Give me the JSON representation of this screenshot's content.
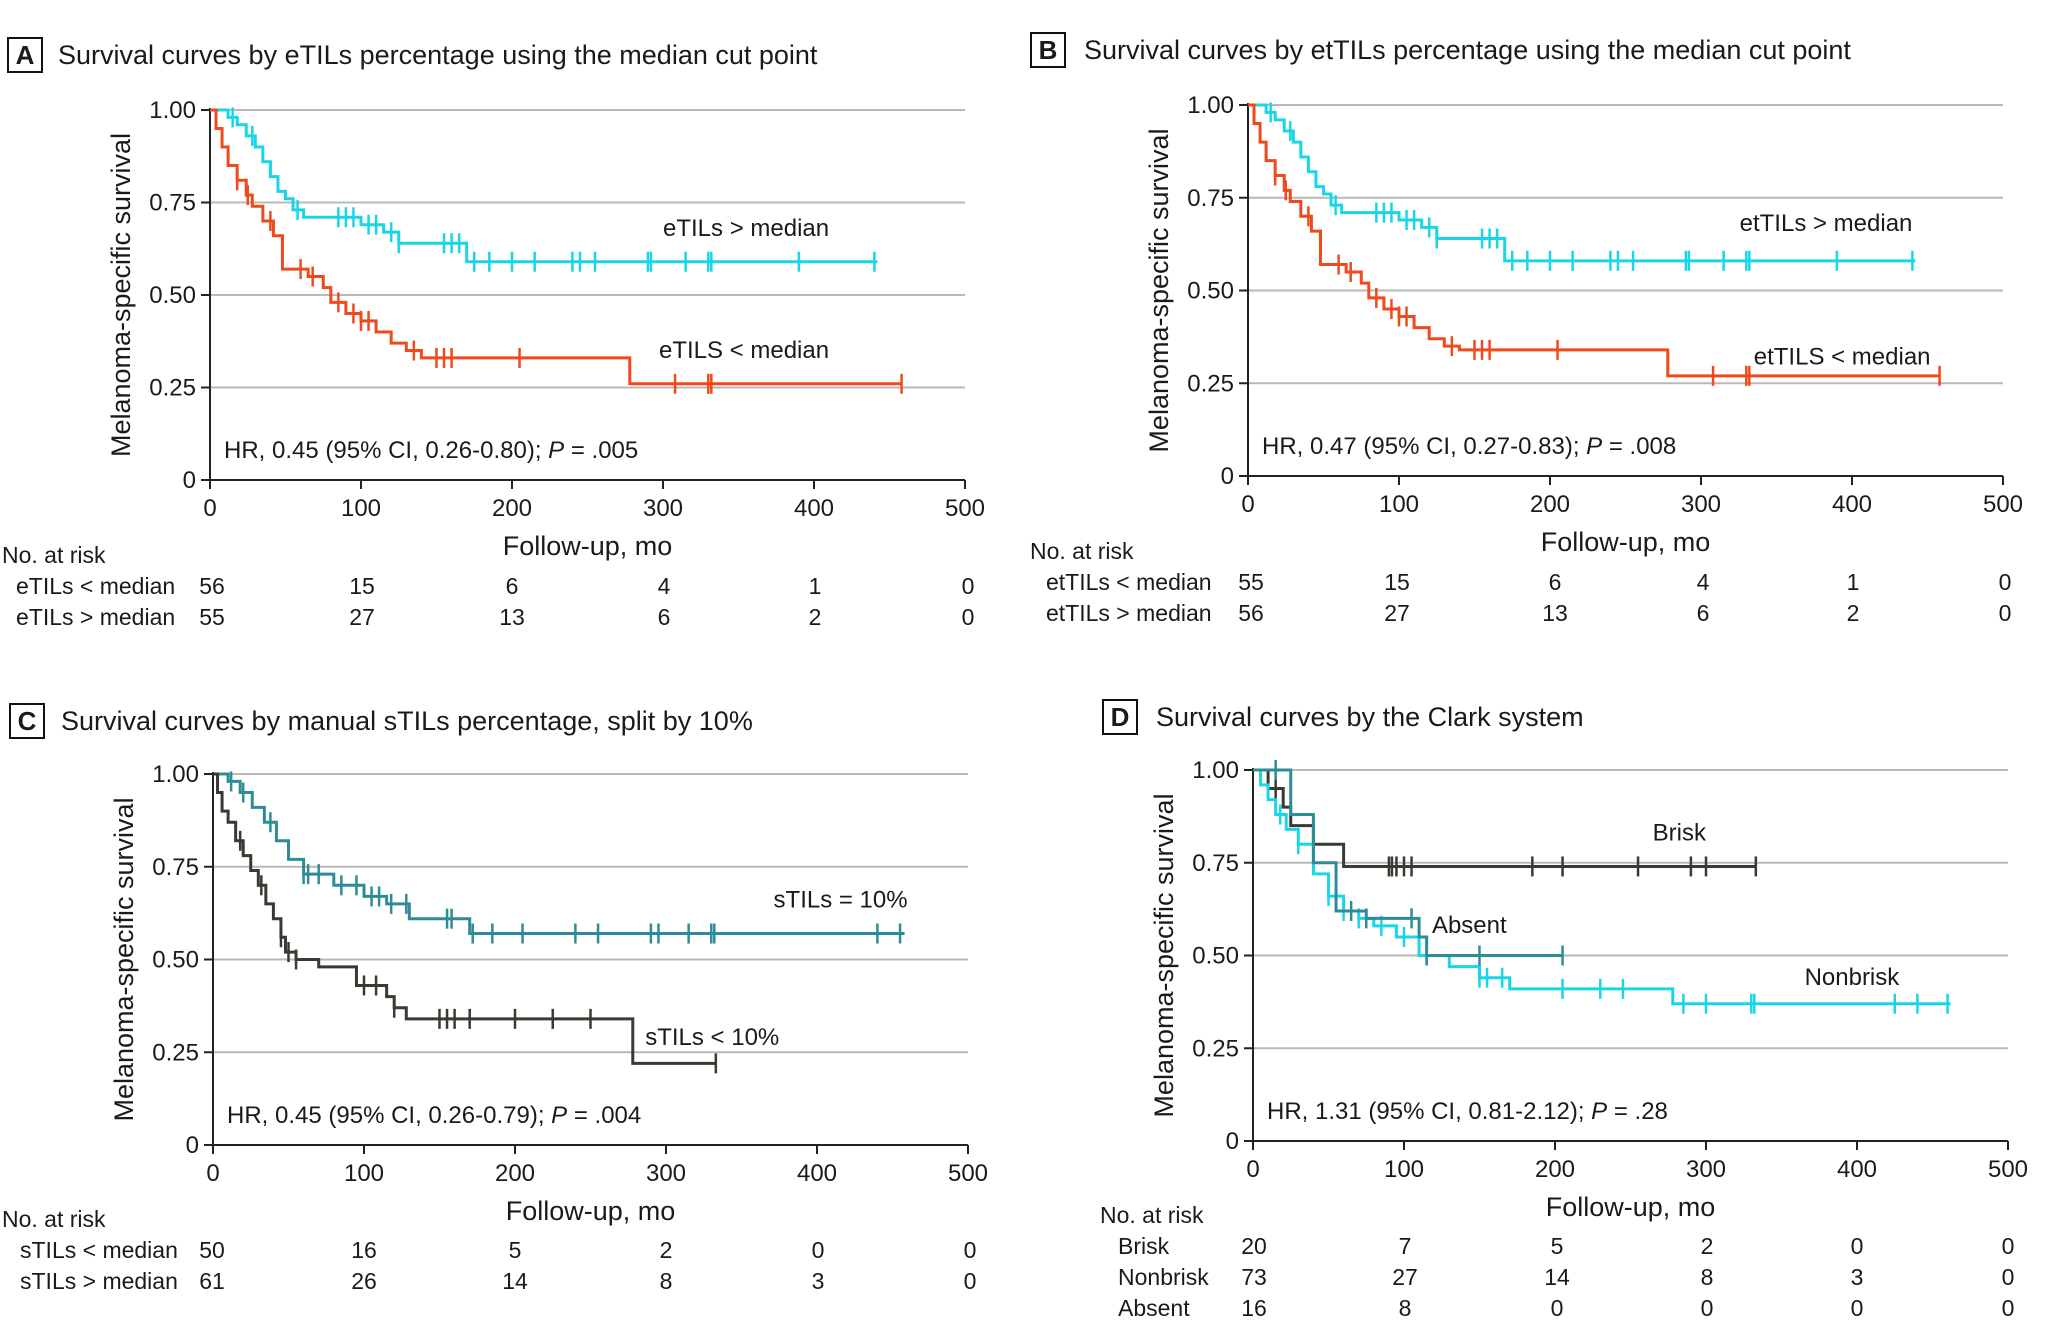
{
  "colors": {
    "teal_light": "#19d6e6",
    "orange": "#f04a1c",
    "teal_dark": "#2e8c96",
    "charcoal": "#3a3a32",
    "grid": "#b9b9b9",
    "axis": "#222222"
  },
  "chart_data": [
    {
      "type": "line",
      "panel": "A",
      "title": "Survival curves by eTILs percentage using the median cut point",
      "xlabel": "Follow-up, mo",
      "ylabel": "Melanoma-specific survival",
      "xlim": [
        0,
        500
      ],
      "ylim": [
        0,
        1
      ],
      "xticks": [
        "0",
        "100",
        "200",
        "300",
        "400",
        "500"
      ],
      "yticks": [
        "0",
        "0.25",
        "0.50",
        "0.75",
        "1.00"
      ],
      "annotation": {
        "pre": "HR, 0.45 (95% CI, 0.26-0.80); ",
        "p": "P",
        "post": " = .005"
      },
      "series": [
        {
          "name": "eTILs > median",
          "color": "#19d6e6",
          "label_pos": [
            410,
            0.66
          ],
          "x": [
            0,
            12,
            18,
            24,
            30,
            35,
            40,
            45,
            50,
            55,
            62,
            80,
            100,
            115,
            125,
            170,
            200,
            250,
            300,
            350,
            400,
            442
          ],
          "y": [
            1.0,
            0.98,
            0.96,
            0.93,
            0.9,
            0.86,
            0.82,
            0.78,
            0.76,
            0.73,
            0.71,
            0.71,
            0.69,
            0.67,
            0.64,
            0.59,
            0.59,
            0.59,
            0.59,
            0.59,
            0.59,
            0.59
          ],
          "censors": [
            15,
            28,
            58,
            85,
            90,
            95,
            105,
            110,
            120,
            125,
            155,
            160,
            165,
            175,
            185,
            200,
            215,
            240,
            245,
            255,
            290,
            292,
            315,
            330,
            332,
            390,
            440
          ]
        },
        {
          "name": "eTILS < median",
          "color": "#f04a1c",
          "label_pos": [
            410,
            0.33
          ],
          "x": [
            0,
            4,
            8,
            12,
            18,
            24,
            28,
            35,
            42,
            48,
            65,
            75,
            80,
            90,
            100,
            110,
            120,
            130,
            140,
            278,
            458
          ],
          "y": [
            1.0,
            0.95,
            0.9,
            0.85,
            0.81,
            0.77,
            0.74,
            0.7,
            0.66,
            0.57,
            0.55,
            0.52,
            0.48,
            0.45,
            0.43,
            0.4,
            0.37,
            0.35,
            0.33,
            0.26,
            0.26
          ],
          "censors": [
            18,
            25,
            40,
            60,
            68,
            85,
            95,
            100,
            105,
            135,
            150,
            155,
            160,
            205,
            308,
            330,
            332,
            458
          ]
        }
      ],
      "risk_table": {
        "header": "No. at risk",
        "rows": [
          {
            "label": "eTILs < median",
            "values": [
              "56",
              "15",
              "6",
              "4",
              "1",
              "0"
            ]
          },
          {
            "label": "eTILs > median",
            "values": [
              "55",
              "27",
              "13",
              "6",
              "2",
              "0"
            ]
          }
        ]
      }
    },
    {
      "type": "line",
      "panel": "B",
      "title": "Survival curves by etTILs percentage using the median cut point",
      "xlabel": "Follow-up, mo",
      "ylabel": "Melanoma-specific survival",
      "xlim": [
        0,
        500
      ],
      "ylim": [
        0,
        1
      ],
      "xticks": [
        "0",
        "100",
        "200",
        "300",
        "400",
        "500"
      ],
      "yticks": [
        "0",
        "0.25",
        "0.50",
        "0.75",
        "1.00"
      ],
      "annotation": {
        "pre": "HR, 0.47 (95% CI, 0.27-0.83); ",
        "p": "P",
        "post": " = .008"
      },
      "series": [
        {
          "name": "etTILs > median",
          "color": "#19d6e6",
          "label_pos": [
            440,
            0.66
          ],
          "x": [
            0,
            12,
            18,
            24,
            30,
            35,
            40,
            45,
            50,
            55,
            62,
            80,
            100,
            115,
            125,
            170,
            200,
            250,
            300,
            350,
            400,
            442
          ],
          "y": [
            1.0,
            0.98,
            0.96,
            0.93,
            0.9,
            0.86,
            0.82,
            0.78,
            0.76,
            0.73,
            0.71,
            0.71,
            0.69,
            0.67,
            0.64,
            0.58,
            0.58,
            0.58,
            0.58,
            0.58,
            0.58,
            0.58
          ],
          "censors": [
            15,
            28,
            58,
            85,
            90,
            95,
            105,
            110,
            120,
            125,
            155,
            160,
            165,
            175,
            185,
            200,
            215,
            240,
            245,
            255,
            290,
            292,
            315,
            330,
            332,
            390,
            440
          ]
        },
        {
          "name": "etTILS < median",
          "color": "#f04a1c",
          "label_pos": [
            452,
            0.3
          ],
          "x": [
            0,
            4,
            8,
            12,
            18,
            24,
            28,
            35,
            42,
            48,
            65,
            75,
            80,
            90,
            100,
            110,
            120,
            130,
            140,
            278,
            458
          ],
          "y": [
            1.0,
            0.95,
            0.9,
            0.85,
            0.81,
            0.77,
            0.74,
            0.7,
            0.66,
            0.57,
            0.55,
            0.52,
            0.48,
            0.45,
            0.43,
            0.4,
            0.37,
            0.35,
            0.34,
            0.27,
            0.27
          ],
          "censors": [
            18,
            25,
            40,
            60,
            68,
            85,
            95,
            100,
            105,
            135,
            150,
            155,
            160,
            205,
            308,
            330,
            332,
            458
          ]
        }
      ],
      "risk_table": {
        "header": "No. at risk",
        "rows": [
          {
            "label": "etTILs < median",
            "values": [
              "55",
              "15",
              "6",
              "4",
              "1",
              "0"
            ]
          },
          {
            "label": "etTILs > median",
            "values": [
              "56",
              "27",
              "13",
              "6",
              "2",
              "0"
            ]
          }
        ]
      }
    },
    {
      "type": "line",
      "panel": "C",
      "title": "Survival curves by manual sTILs percentage, split by 10%",
      "xlabel": "Follow-up, mo",
      "ylabel": "Melanoma-specific survival",
      "xlim": [
        0,
        500
      ],
      "ylim": [
        0,
        1
      ],
      "xticks": [
        "0",
        "100",
        "200",
        "300",
        "400",
        "500"
      ],
      "yticks": [
        "0",
        "0.25",
        "0.50",
        "0.75",
        "1.00"
      ],
      "annotation": {
        "pre": "HR, 0.45 (95% CI, 0.26-0.79); ",
        "p": "P",
        "post": " = .004"
      },
      "series": [
        {
          "name": "sTILs = 10%",
          "color": "#2e8c96",
          "label_pos": [
            460,
            0.64
          ],
          "x": [
            0,
            10,
            18,
            26,
            34,
            42,
            50,
            60,
            80,
            100,
            115,
            130,
            170,
            200,
            300,
            400,
            458
          ],
          "y": [
            1.0,
            0.98,
            0.95,
            0.91,
            0.87,
            0.82,
            0.77,
            0.73,
            0.7,
            0.67,
            0.65,
            0.61,
            0.57,
            0.57,
            0.57,
            0.57,
            0.57
          ],
          "censors": [
            12,
            20,
            38,
            60,
            63,
            70,
            85,
            95,
            105,
            110,
            118,
            128,
            155,
            158,
            172,
            185,
            205,
            240,
            255,
            290,
            295,
            315,
            330,
            332,
            440,
            455
          ]
        },
        {
          "name": "sTILs < 10%",
          "color": "#3a3a32",
          "label_pos": [
            375,
            0.27
          ],
          "x": [
            0,
            3,
            6,
            10,
            15,
            20,
            25,
            30,
            35,
            40,
            45,
            48,
            55,
            70,
            95,
            115,
            120,
            128,
            278,
            333
          ],
          "y": [
            1.0,
            0.95,
            0.9,
            0.87,
            0.82,
            0.78,
            0.74,
            0.7,
            0.65,
            0.61,
            0.56,
            0.52,
            0.5,
            0.48,
            0.43,
            0.4,
            0.37,
            0.34,
            0.22,
            0.22
          ],
          "censors": [
            18,
            32,
            45,
            50,
            55,
            100,
            108,
            120,
            150,
            155,
            160,
            170,
            200,
            225,
            250,
            333
          ]
        }
      ],
      "risk_table": {
        "header": "No. at risk",
        "rows": [
          {
            "label": "sTILs < median",
            "values": [
              "50",
              "16",
              "5",
              "2",
              "0",
              "0"
            ]
          },
          {
            "label": "sTILs > median",
            "values": [
              "61",
              "26",
              "14",
              "8",
              "3",
              "0"
            ]
          }
        ]
      }
    },
    {
      "type": "line",
      "panel": "D",
      "title": "Survival curves by the Clark system",
      "xlabel": "Follow-up, mo",
      "ylabel": "Melanoma-specific survival",
      "xlim": [
        0,
        500
      ],
      "ylim": [
        0,
        1
      ],
      "xticks": [
        "0",
        "100",
        "200",
        "300",
        "400",
        "500"
      ],
      "yticks": [
        "0",
        "0.25",
        "0.50",
        "0.75",
        "1.00"
      ],
      "annotation": {
        "pre": "HR, 1.31 (95% CI, 0.81-2.12); ",
        "p": "P",
        "post": " = .28"
      },
      "series": [
        {
          "name": "Brisk",
          "color": "#3a3a32",
          "label_pos": [
            300,
            0.81
          ],
          "x": [
            0,
            10,
            20,
            25,
            40,
            60,
            200,
            333
          ],
          "y": [
            1.0,
            0.95,
            0.9,
            0.85,
            0.8,
            0.74,
            0.74,
            0.74
          ],
          "censors": [
            15,
            90,
            92,
            95,
            100,
            105,
            185,
            205,
            255,
            290,
            300,
            333
          ]
        },
        {
          "name": "Nonbrisk",
          "color": "#19d6e6",
          "label_pos": [
            428,
            0.42
          ],
          "x": [
            0,
            5,
            10,
            15,
            22,
            30,
            40,
            50,
            60,
            70,
            80,
            95,
            110,
            130,
            150,
            170,
            278,
            462
          ],
          "y": [
            1.0,
            0.96,
            0.92,
            0.88,
            0.84,
            0.8,
            0.72,
            0.66,
            0.62,
            0.6,
            0.58,
            0.55,
            0.5,
            0.47,
            0.44,
            0.41,
            0.37,
            0.37
          ],
          "censors": [
            18,
            30,
            50,
            60,
            70,
            85,
            100,
            115,
            150,
            155,
            165,
            205,
            230,
            245,
            285,
            300,
            330,
            332,
            425,
            440,
            460
          ]
        },
        {
          "name": "Absent",
          "color": "#2e8c96",
          "label_pos": [
            168,
            0.56
          ],
          "x": [
            0,
            18,
            25,
            40,
            55,
            75,
            110,
            115,
            205
          ],
          "y": [
            1.0,
            1.0,
            0.88,
            0.75,
            0.62,
            0.6,
            0.55,
            0.5,
            0.5
          ],
          "censors": [
            15,
            65,
            75,
            105,
            115,
            150,
            205
          ]
        }
      ],
      "risk_table": {
        "header": "No. at risk",
        "rows": [
          {
            "label": "Brisk",
            "values": [
              "20",
              "7",
              "5",
              "2",
              "0",
              "0"
            ]
          },
          {
            "label": "Nonbrisk",
            "values": [
              "73",
              "27",
              "14",
              "8",
              "3",
              "0"
            ]
          },
          {
            "label": "Absent",
            "values": [
              "16",
              "8",
              "0",
              "0",
              "0",
              "0"
            ]
          }
        ]
      }
    }
  ]
}
